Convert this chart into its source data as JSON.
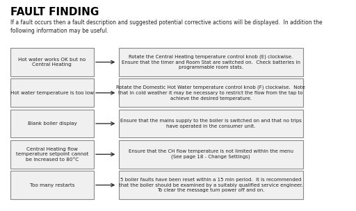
{
  "title": "FAULT FINDING",
  "intro": "If a fault occurs then a fault description and suggested potential corrective actions will be displayed.  In addition the\nfollowing information may be useful.",
  "bg_color": "#ffffff",
  "box_bg_left": "#f0f0f0",
  "box_bg_right": "#f0f0f0",
  "box_border": "#888888",
  "rows": [
    {
      "left": "Hot water works OK but no\nCentral Heating",
      "right": "Rotate the Central Heating temperature control knob (E) clockwise.\nEnsure that the timer and Room Stat are switched on.  Check batteries in\nprogrammable room stats."
    },
    {
      "left": "Hot water temperature is too low",
      "right": "Rotate the Domestic Hot Water temperature control knob (F) clockwise.  Note\nthat in cold weather it may be necessary to restrict the flow from the tap to\nachieve the desired temperature."
    },
    {
      "left": "Blank boiler display",
      "right": "Ensure that the mains supply to the boiler is switched on and that no trips\nhave operated in the consumer unit."
    },
    {
      "left": "Central Heating flow\ntemperature setpoint cannot\nbe increased to 80°C",
      "right": "Ensure that the CH flow temperature is not limited within the menu\n(See page 18 - Change Settings)"
    },
    {
      "left": "Too many restarts",
      "right": "5 boiler faults have been reset within a 15 min period.  It is recommended\nthat the boiler should be examined by a suitably qualified service engineer.\nTo clear the message turn power off and on."
    }
  ]
}
